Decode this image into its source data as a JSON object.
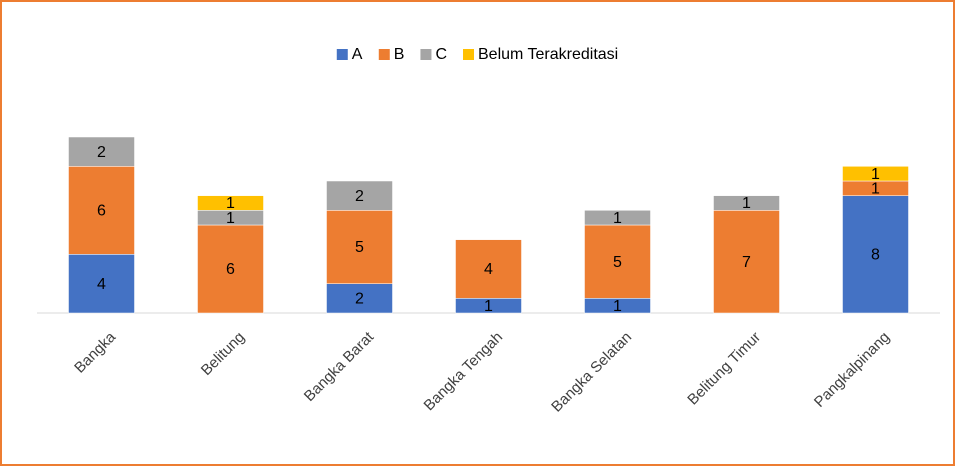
{
  "chart_data": {
    "type": "bar",
    "stacked": true,
    "categories": [
      "Bangka",
      "Belitung",
      "Bangka Barat",
      "Bangka Tengah",
      "Bangka Selatan",
      "Belitung Timur",
      "Pangkalpinang"
    ],
    "series": [
      {
        "name": "A",
        "color": "#4472c4",
        "values": [
          4,
          null,
          2,
          1,
          1,
          null,
          8
        ]
      },
      {
        "name": "B",
        "color": "#ed7d31",
        "values": [
          6,
          6,
          5,
          4,
          5,
          7,
          1
        ]
      },
      {
        "name": "C",
        "color": "#a5a5a5",
        "values": [
          2,
          1,
          2,
          null,
          1,
          1,
          null
        ]
      },
      {
        "name": "Belum Terakreditasi",
        "color": "#ffc000",
        "values": [
          null,
          1,
          null,
          null,
          null,
          null,
          1
        ]
      }
    ],
    "ylim": [
      0,
      12
    ],
    "legend": "top"
  }
}
